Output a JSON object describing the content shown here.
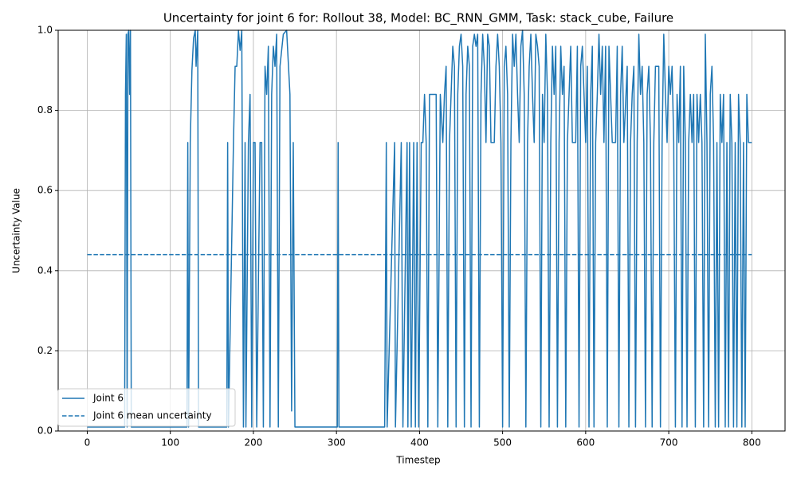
{
  "chart_data": {
    "type": "line",
    "title": "Uncertainty for joint 6 for: Rollout 38, Model: BC_RNN_GMM, Task: stack_cube, Failure",
    "x_label": "Timestep",
    "y_label": "Uncertainty Value",
    "xlim": [
      -35,
      840
    ],
    "ylim": [
      0,
      1
    ],
    "xticks": [
      0,
      100,
      200,
      300,
      400,
      500,
      600,
      700,
      800
    ],
    "yticks": [
      {
        "value": 0,
        "label": "0.0"
      },
      0.2,
      0.4,
      0.6,
      0.8,
      {
        "value": 1,
        "label": "1.0"
      }
    ],
    "grid": true,
    "legend": "lower left",
    "series": [
      {
        "name": "Joint 6",
        "color": "#1f77b4",
        "style": "solid",
        "x": [
          0,
          20,
          45,
          46,
          47,
          48,
          49,
          50,
          51,
          52,
          53,
          54,
          60,
          90,
          120,
          121,
          122,
          124,
          126,
          128,
          130,
          131,
          133,
          134,
          150,
          168,
          169,
          170,
          176,
          178,
          180,
          182,
          184,
          186,
          188,
          190,
          191,
          194,
          196,
          198,
          200,
          202,
          204,
          208,
          210,
          212,
          214,
          216,
          218,
          220,
          222,
          224,
          226,
          228,
          230,
          232,
          236,
          240,
          244,
          246,
          248,
          250,
          280,
          301,
          302,
          303,
          330,
          358,
          360,
          361,
          370,
          371,
          378,
          380,
          385,
          386,
          388,
          390,
          393,
          395,
          397,
          399,
          402,
          404,
          406,
          408,
          410,
          412,
          415,
          420,
          422,
          425,
          428,
          430,
          432,
          434,
          436,
          438,
          440,
          442,
          444,
          446,
          448,
          450,
          452,
          454,
          456,
          458,
          460,
          462,
          464,
          466,
          468,
          470,
          472,
          474,
          476,
          478,
          480,
          482,
          484,
          486,
          490,
          492,
          494,
          496,
          498,
          500,
          502,
          504,
          506,
          508,
          510,
          512,
          514,
          516,
          518,
          520,
          522,
          524,
          526,
          528,
          530,
          532,
          534,
          536,
          538,
          540,
          542,
          544,
          546,
          548,
          550,
          552,
          554,
          556,
          558,
          560,
          562,
          564,
          566,
          568,
          570,
          572,
          574,
          576,
          578,
          580,
          582,
          584,
          588,
          590,
          592,
          594,
          596,
          598,
          600,
          602,
          604,
          606,
          608,
          610,
          612,
          614,
          616,
          618,
          620,
          622,
          624,
          626,
          628,
          630,
          632,
          636,
          638,
          640,
          642,
          644,
          646,
          650,
          652,
          654,
          656,
          658,
          660,
          662,
          664,
          666,
          668,
          670,
          672,
          674,
          676,
          678,
          680,
          682,
          684,
          688,
          690,
          692,
          694,
          696,
          698,
          700,
          702,
          704,
          706,
          708,
          710,
          712,
          714,
          716,
          718,
          720,
          722,
          724,
          726,
          728,
          730,
          732,
          734,
          736,
          738,
          740,
          742,
          744,
          746,
          748,
          750,
          752,
          754,
          756,
          758,
          760,
          762,
          764,
          766,
          768,
          770,
          772,
          774,
          776,
          778,
          780,
          782,
          784,
          786,
          788,
          790,
          792,
          794,
          796,
          800
        ],
        "values": [
          0.01,
          0.01,
          0.01,
          0.84,
          0.99,
          0.01,
          0.99,
          1.0,
          0.84,
          1.0,
          0.01,
          0.01,
          0.01,
          0.01,
          0.01,
          0.72,
          0.01,
          0.72,
          0.9,
          0.98,
          1.0,
          0.91,
          1.0,
          0.01,
          0.01,
          0.01,
          0.72,
          0.01,
          0.72,
          0.91,
          0.91,
          1.0,
          0.95,
          1.0,
          0.01,
          0.72,
          0.01,
          0.72,
          0.84,
          0.01,
          0.72,
          0.72,
          0.01,
          0.72,
          0.72,
          0.01,
          0.91,
          0.84,
          0.96,
          0.01,
          0.84,
          0.96,
          0.91,
          0.99,
          0.01,
          0.91,
          0.99,
          1.0,
          0.84,
          0.05,
          0.72,
          0.01,
          0.01,
          0.01,
          0.72,
          0.01,
          0.01,
          0.01,
          0.72,
          0.01,
          0.72,
          0.01,
          0.72,
          0.01,
          0.72,
          0.01,
          0.72,
          0.01,
          0.72,
          0.01,
          0.72,
          0.01,
          0.72,
          0.72,
          0.84,
          0.72,
          0.01,
          0.84,
          0.84,
          0.84,
          0.01,
          0.84,
          0.72,
          0.84,
          0.91,
          0.01,
          0.72,
          0.84,
          0.96,
          0.91,
          0.01,
          0.84,
          0.96,
          0.99,
          0.91,
          0.01,
          0.84,
          0.96,
          0.91,
          0.01,
          0.96,
          0.99,
          0.96,
          0.99,
          0.01,
          0.84,
          0.99,
          0.91,
          0.72,
          0.99,
          0.96,
          0.72,
          0.72,
          0.91,
          0.99,
          0.91,
          0.72,
          0.01,
          0.91,
          0.96,
          0.84,
          0.01,
          0.72,
          0.99,
          0.91,
          0.99,
          0.84,
          0.72,
          0.96,
          1.0,
          0.84,
          0.01,
          0.72,
          0.91,
          0.99,
          0.84,
          0.72,
          0.99,
          0.96,
          0.91,
          0.01,
          0.84,
          0.72,
          0.99,
          0.84,
          0.01,
          0.72,
          0.96,
          0.84,
          0.96,
          0.01,
          0.72,
          0.96,
          0.84,
          0.91,
          0.01,
          0.72,
          0.84,
          0.96,
          0.72,
          0.72,
          0.96,
          0.01,
          0.91,
          0.96,
          0.84,
          0.72,
          0.91,
          0.01,
          0.84,
          0.96,
          0.01,
          0.72,
          0.84,
          0.99,
          0.84,
          0.96,
          0.72,
          0.96,
          0.01,
          0.96,
          0.84,
          0.72,
          0.72,
          0.96,
          0.01,
          0.84,
          0.96,
          0.72,
          0.91,
          0.01,
          0.72,
          0.84,
          0.91,
          0.01,
          0.72,
          0.99,
          0.84,
          0.91,
          0.72,
          0.01,
          0.84,
          0.91,
          0.72,
          0.01,
          0.72,
          0.91,
          0.91,
          0.01,
          0.72,
          0.99,
          0.84,
          0.72,
          0.91,
          0.84,
          0.91,
          0.72,
          0.01,
          0.84,
          0.72,
          0.91,
          0.01,
          0.91,
          0.72,
          0.01,
          0.72,
          0.84,
          0.72,
          0.84,
          0.01,
          0.84,
          0.72,
          0.84,
          0.72,
          0.01,
          0.99,
          0.72,
          0.01,
          0.84,
          0.91,
          0.72,
          0.01,
          0.72,
          0.01,
          0.84,
          0.72,
          0.84,
          0.01,
          0.72,
          0.01,
          0.84,
          0.72,
          0.01,
          0.72,
          0.01,
          0.84,
          0.72,
          0.01,
          0.72,
          0.01,
          0.84,
          0.72,
          0.72
        ]
      },
      {
        "name": "Joint 6 mean uncertainty",
        "color": "#1f77b4",
        "style": "dashed",
        "x": [
          0,
          800
        ],
        "values": [
          0.44,
          0.44
        ]
      }
    ]
  }
}
